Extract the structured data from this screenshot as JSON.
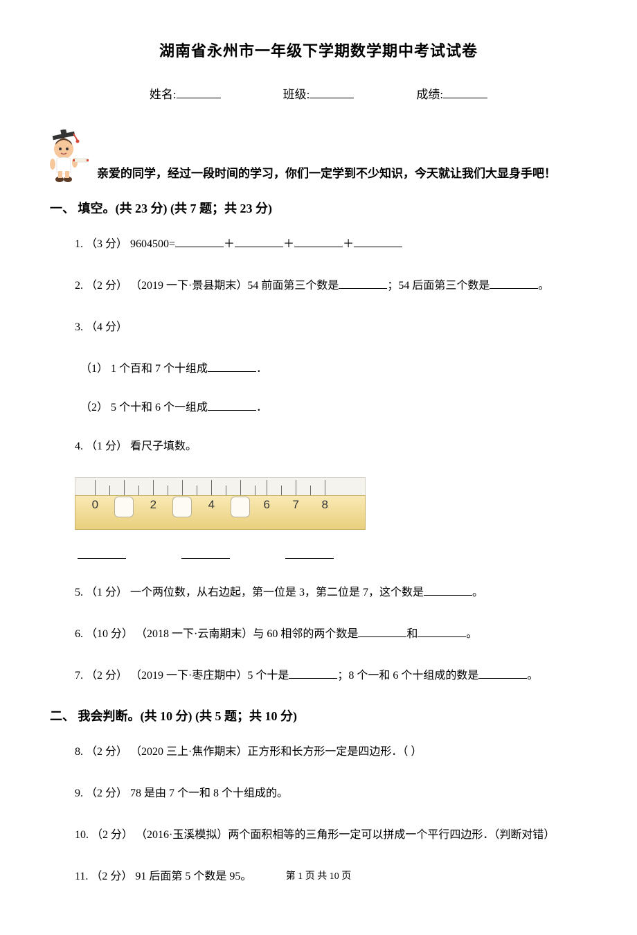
{
  "title": "湖南省永州市一年级下学期数学期中考试试卷",
  "info": {
    "name": "姓名:",
    "class": "班级:",
    "score": "成绩:"
  },
  "intro": "亲爱的同学，经过一段时间的学习，你们一定学到不少知识，今天就让我们大显身手吧！",
  "section1": {
    "heading": "一、 填空。(共 23 分)   (共 7 题；共 23 分)",
    "q1": "1.  （3 分）  9604500=",
    "q1_plus": "＋",
    "q2a": "2.  （2 分） （2019 一下·景县期末）54 前面第三个数是",
    "q2b": "；54 后面第三个数是",
    "q2c": "。",
    "q3": "3.  （4 分）",
    "q3_1a": "（1）  1 个百和 7 个十组成",
    "q3_1b": "．",
    "q3_2a": "（2）  5 个十和 6 个一组成",
    "q3_2b": "．",
    "q4": "4.  （1 分）  看尺子填数。",
    "q5a": "5.  （1 分）  一个两位数，从右边起，第一位是 3，第二位是 7，这个数是",
    "q5b": "。",
    "q6a": "6.  （10 分） （2018 一下·云南期末）与 60 相邻的两个数是",
    "q6b": "和",
    "q6c": "。",
    "q7a": "7.  （2 分） （2019 一下·枣庄期中）5 个十是",
    "q7b": "；8 个一和 6 个十组成的数是",
    "q7c": "。"
  },
  "section2": {
    "heading": "二、 我会判断。(共 10 分)   (共 5 题；共 10 分)",
    "q8": "8.  （2 分） （2020 三上·焦作期末）正方形和长方形一定是四边形．（      ）",
    "q9": "9.  （2 分）  78 是由 7 个一和 8 个十组成的。",
    "q10": "10.  （2 分） （2016·玉溪模拟）两个面积相等的三角形一定可以拼成一个平行四边形．（判断对错）",
    "q11": "11.  （2 分）  91 后面第 5 个数是 95。"
  },
  "ruler": {
    "numbers": [
      "0",
      "2",
      "4",
      "6",
      "7",
      "8"
    ],
    "number_positions_pct": [
      7,
      27,
      47,
      66,
      76,
      86
    ],
    "box_positions_pct": [
      17,
      37,
      57
    ],
    "tick_positions_pct": [
      7,
      12,
      17,
      22,
      27,
      32,
      37,
      42,
      47,
      52,
      57,
      62,
      66,
      71,
      76,
      81,
      86
    ],
    "body_gradient_top": "#f9e9b4",
    "body_gradient_bottom": "#e9d07e",
    "top_bg": "#f5f3ee"
  },
  "footer": "第 1 页 共 10 页",
  "mascot": {
    "hat": "#333333",
    "tassel": "#d94a3a",
    "skin": "#f6c79a",
    "hair": "#5a3b26",
    "shirt": "#ffffff",
    "scroll_ribbon": "#d94a3a",
    "shoe": "#5a3b26"
  }
}
